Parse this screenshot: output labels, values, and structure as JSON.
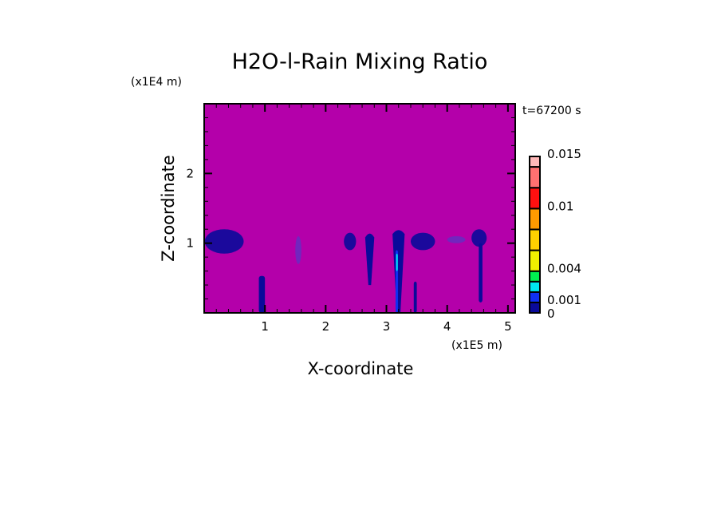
{
  "chart_data": {
    "type": "heatmap",
    "title": "H2O-l-Rain Mixing Ratio",
    "time_label": "t=67200 s",
    "xlabel": "X-coordinate",
    "ylabel": "Z-coordinate",
    "x_unit": "(x1E5 m)",
    "y_unit": "(x1E4 m)",
    "xlim": [
      0,
      5.12
    ],
    "ylim": [
      0,
      3.0
    ],
    "x_ticks": [
      1,
      2,
      3,
      4,
      5
    ],
    "y_ticks": [
      1,
      2
    ],
    "x_tick_labels": [
      "1",
      "2",
      "3",
      "4",
      "5"
    ],
    "y_tick_labels": [
      "1",
      "2"
    ],
    "background_color": "#b400aa",
    "colorbar": {
      "levels": [
        0,
        0.001,
        0.002,
        0.003,
        0.004,
        0.006,
        0.008,
        0.01,
        0.012,
        0.014,
        0.015
      ],
      "colors": [
        "#0a0a9a",
        "#1030f0",
        "#00e8f0",
        "#00f050",
        "#f0f000",
        "#ffd000",
        "#ff9a00",
        "#ff1010",
        "#ff7070",
        "#ffb8b8"
      ],
      "labels": [
        "0",
        "0.001",
        "0.004",
        "0.01",
        "0.015"
      ],
      "label_values": [
        0,
        0.001,
        0.004,
        0.01,
        0.015
      ]
    },
    "regions": [
      {
        "x": [
          0.01,
          0.65
        ],
        "z": [
          0.85,
          1.2
        ],
        "level": 0.0005,
        "shape": "cloud"
      },
      {
        "x": [
          0.9,
          1.0
        ],
        "z": [
          0.0,
          0.53
        ],
        "level": 0.0005,
        "shape": "column"
      },
      {
        "x": [
          1.5,
          1.6
        ],
        "z": [
          0.7,
          1.1
        ],
        "level": 0.0003,
        "shape": "cloud"
      },
      {
        "x": [
          2.3,
          2.5
        ],
        "z": [
          0.9,
          1.15
        ],
        "level": 0.0005,
        "shape": "cloud"
      },
      {
        "x": [
          2.65,
          2.8
        ],
        "z": [
          0.4,
          1.15
        ],
        "level": 0.0005,
        "shape": "taper"
      },
      {
        "x": [
          3.1,
          3.3
        ],
        "z": [
          0.0,
          1.2
        ],
        "level": 0.0005,
        "shape": "taper"
      },
      {
        "x": [
          3.15,
          3.19
        ],
        "z": [
          0.0,
          0.9
        ],
        "level": 0.0015,
        "shape": "column"
      },
      {
        "x": [
          3.16,
          3.18
        ],
        "z": [
          0.6,
          0.85
        ],
        "level": 0.0025,
        "shape": "column"
      },
      {
        "x": [
          3.45,
          3.5
        ],
        "z": [
          0.0,
          0.45
        ],
        "level": 0.0005,
        "shape": "column"
      },
      {
        "x": [
          3.4,
          3.8
        ],
        "z": [
          0.9,
          1.15
        ],
        "level": 0.0005,
        "shape": "cloud"
      },
      {
        "x": [
          4.0,
          4.3
        ],
        "z": [
          1.0,
          1.1
        ],
        "level": 0.0003,
        "shape": "cloud"
      },
      {
        "x": [
          4.4,
          4.65
        ],
        "z": [
          0.95,
          1.2
        ],
        "level": 0.0005,
        "shape": "cloud"
      },
      {
        "x": [
          4.52,
          4.58
        ],
        "z": [
          0.15,
          1.0
        ],
        "level": 0.0005,
        "shape": "column"
      }
    ]
  }
}
